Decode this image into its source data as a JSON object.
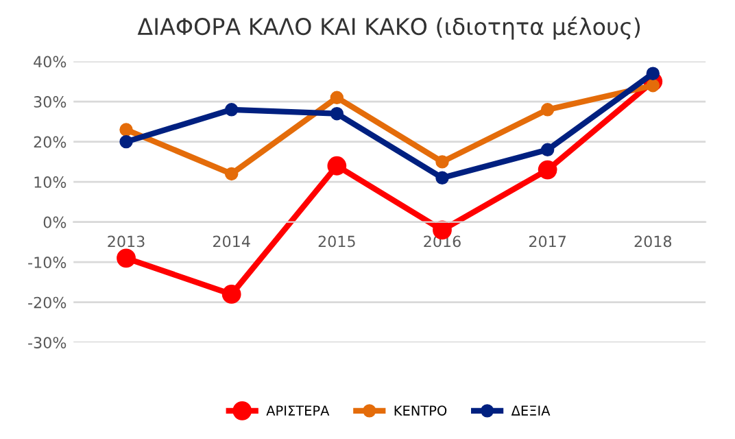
{
  "chart_data": {
    "type": "line",
    "title": "ΔΙΑΦΟΡΑ ΚΑΛΟ ΚΑΙ ΚΑΚΟ (ιδιοτητα μέλους)",
    "categories": [
      "2013",
      "2014",
      "2015",
      "2016",
      "2017",
      "2018"
    ],
    "series": [
      {
        "name": "ΑΡΙΣΤΕΡΑ",
        "color": "#ff0000",
        "values": [
          -9,
          -18,
          14,
          -2,
          13,
          35
        ]
      },
      {
        "name": "ΚΕΝΤΡΟ",
        "color": "#e46c0a",
        "values": [
          23,
          12,
          31,
          15,
          28,
          34
        ]
      },
      {
        "name": "ΔΕΞΙΑ",
        "color": "#002080",
        "values": [
          20,
          28,
          27,
          11,
          18,
          37
        ]
      }
    ],
    "ylim": [
      -30,
      40
    ],
    "yticks": [
      {
        "value": -30,
        "label": "-30%"
      },
      {
        "value": -20,
        "label": "-20%"
      },
      {
        "value": -10,
        "label": "-10%"
      },
      {
        "value": 0,
        "label": "0%"
      },
      {
        "value": 10,
        "label": "10%"
      },
      {
        "value": 20,
        "label": "20%"
      },
      {
        "value": 30,
        "label": "30%"
      },
      {
        "value": 40,
        "label": "40%"
      }
    ],
    "grid": "y",
    "legend": "bottom",
    "marker": "circle",
    "line_style": "solid"
  }
}
